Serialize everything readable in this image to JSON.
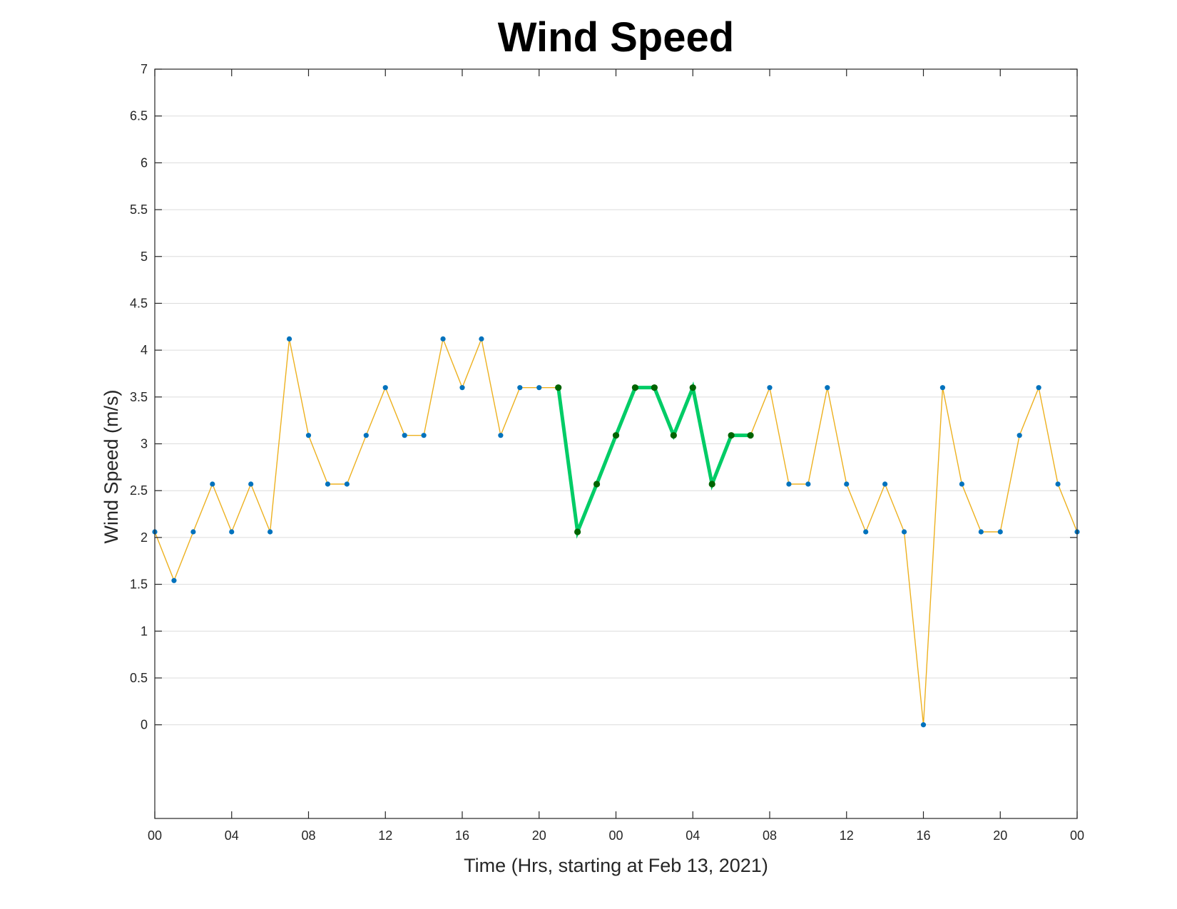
{
  "chart_data": {
    "type": "line",
    "title": "Wind Speed",
    "xlabel": "Time (Hrs, starting at Feb 13, 2021)",
    "ylabel": "Wind Speed (m/s)",
    "xlim": [
      0,
      48
    ],
    "ylim": [
      -1,
      7
    ],
    "yticks": [
      0,
      0.5,
      1,
      1.5,
      2,
      2.5,
      3,
      3.5,
      4,
      4.5,
      5,
      5.5,
      6,
      6.5,
      7
    ],
    "ytick_labels": [
      "0",
      "0.5",
      "1",
      "1.5",
      "2",
      "2.5",
      "3",
      "3.5",
      "4",
      "4.5",
      "5",
      "5.5",
      "6",
      "6.5",
      "7"
    ],
    "xticks": [
      0,
      4,
      8,
      12,
      16,
      20,
      24,
      28,
      32,
      36,
      40,
      44,
      48
    ],
    "xtick_labels": [
      "00",
      "04",
      "08",
      "12",
      "16",
      "20",
      "00",
      "04",
      "08",
      "12",
      "16",
      "20",
      "00"
    ],
    "grid": "horizontal",
    "series": [
      {
        "color": "#EDB120",
        "marker_color": "#0072BD",
        "x": [
          0,
          1,
          2,
          3,
          4,
          5,
          6,
          7,
          8,
          9,
          10,
          11,
          12,
          13,
          14,
          15,
          16,
          17,
          18,
          19,
          20,
          21,
          22,
          23,
          24,
          25,
          26,
          27,
          28,
          29,
          30,
          31,
          32,
          33,
          34,
          35,
          36,
          37,
          38,
          39,
          40,
          41,
          42,
          43,
          44,
          45,
          46,
          47,
          48
        ],
        "y": [
          2.06,
          1.54,
          2.06,
          2.57,
          2.06,
          2.57,
          2.06,
          4.12,
          3.09,
          2.57,
          2.57,
          3.09,
          3.6,
          3.09,
          3.09,
          4.12,
          3.6,
          4.12,
          3.09,
          3.6,
          3.6,
          3.6,
          2.06,
          2.57,
          3.09,
          3.6,
          3.6,
          3.09,
          3.6,
          2.57,
          3.09,
          3.09,
          3.6,
          2.57,
          2.57,
          3.6,
          2.57,
          2.06,
          2.57,
          2.06,
          0,
          3.6,
          2.57,
          2.06,
          2.06,
          3.09,
          3.6,
          2.57,
          2.06
        ]
      },
      {
        "color": "#00CC66",
        "marker_color": "#006400",
        "x": [
          21,
          22,
          23,
          24,
          25,
          26,
          27,
          28,
          29,
          30,
          31
        ],
        "y": [
          3.6,
          2.06,
          2.57,
          3.09,
          3.6,
          3.6,
          3.09,
          3.6,
          2.57,
          3.09,
          3.09
        ]
      }
    ]
  }
}
